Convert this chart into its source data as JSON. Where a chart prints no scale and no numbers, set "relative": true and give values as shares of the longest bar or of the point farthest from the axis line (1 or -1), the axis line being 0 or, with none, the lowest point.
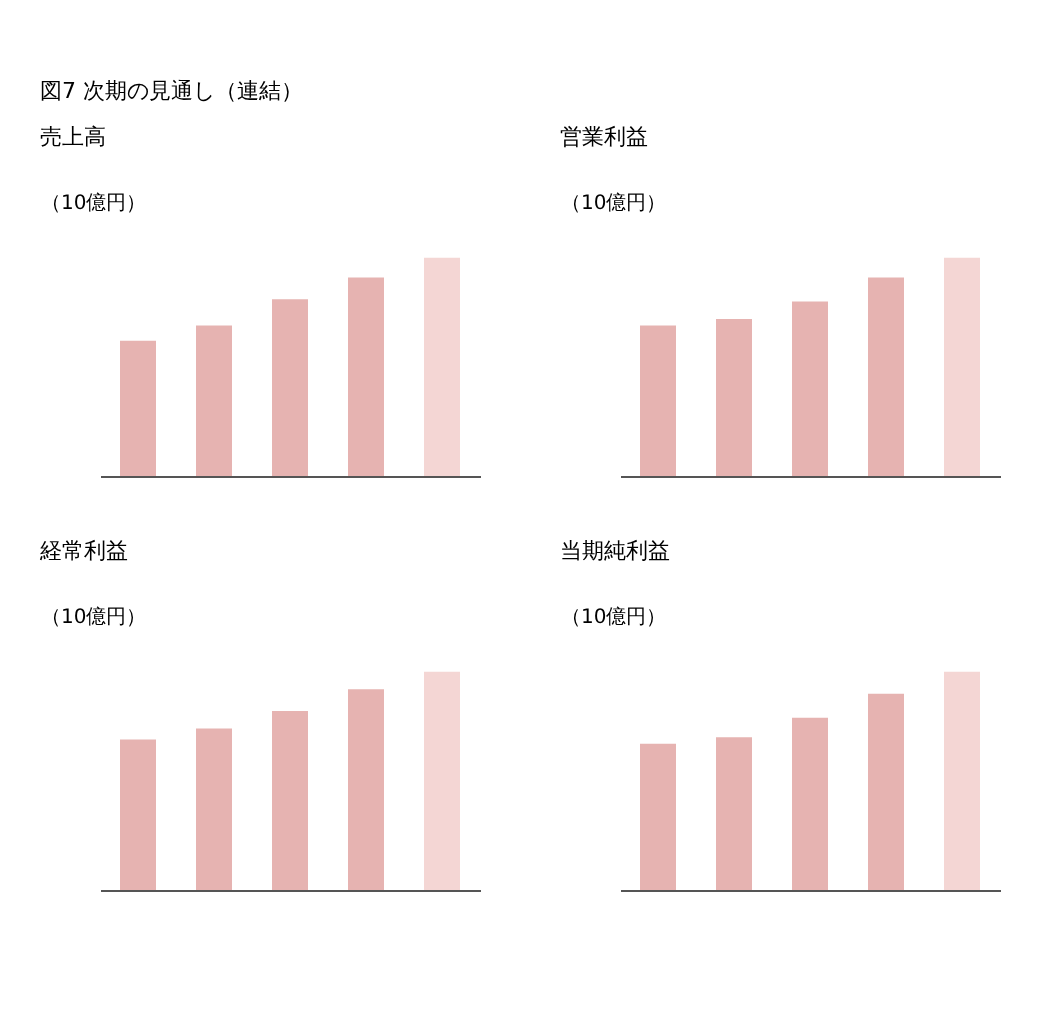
{
  "chart_data": [
    {
      "type": "bar",
      "title": "売上高",
      "ylabel": "（10億円）",
      "relative": true,
      "categories": [
        null,
        null,
        null,
        null,
        null
      ],
      "values": [
        0.62,
        0.69,
        0.81,
        0.91,
        1
      ],
      "colors": [
        "#e6b3b1",
        "#e6b3b1",
        "#e6b3b1",
        "#e6b3b1",
        "#f4d6d4"
      ],
      "annotations": [
        "図7 次期の見通し（連結）"
      ]
    },
    {
      "type": "bar",
      "title": "営業利益",
      "ylabel": "（10億円）",
      "relative": true,
      "categories": [
        null,
        null,
        null,
        null,
        null
      ],
      "values": [
        0.69,
        0.72,
        0.8,
        0.91,
        1
      ],
      "colors": [
        "#e6b3b1",
        "#e6b3b1",
        "#e6b3b1",
        "#e6b3b1",
        "#f4d6d4"
      ]
    },
    {
      "type": "bar",
      "title": "経常利益",
      "ylabel": "（10億円）",
      "relative": true,
      "categories": [
        null,
        null,
        null,
        null,
        null
      ],
      "values": [
        0.69,
        0.74,
        0.82,
        0.92,
        1
      ],
      "colors": [
        "#e6b3b1",
        "#e6b3b1",
        "#e6b3b1",
        "#e6b3b1",
        "#f4d6d4"
      ]
    },
    {
      "type": "bar",
      "title": "当期純利益",
      "ylabel": "（10億円）",
      "relative": true,
      "categories": [
        null,
        null,
        null,
        null,
        null
      ],
      "values": [
        0.67,
        0.7,
        0.79,
        0.9,
        1
      ],
      "colors": [
        "#e6b3b1",
        "#e6b3b1",
        "#e6b3b1",
        "#e6b3b1",
        "#f4d6d4"
      ]
    }
  ]
}
